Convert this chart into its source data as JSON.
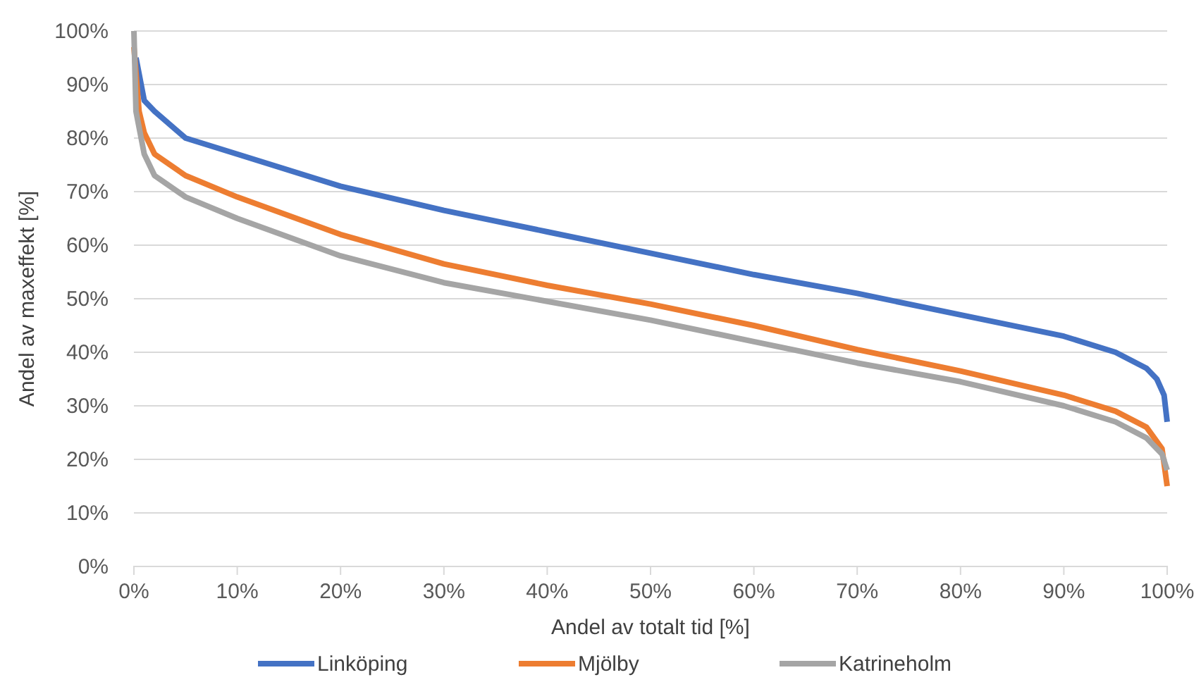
{
  "chart_data": {
    "type": "line",
    "xlabel": "Andel av totalt tid [%]",
    "ylabel": "Andel av maxeffekt [%]",
    "xlim": [
      0,
      100
    ],
    "ylim": [
      0,
      100
    ],
    "xticks": [
      {
        "value": 0,
        "label": "0%"
      },
      {
        "value": 10,
        "label": "10%"
      },
      {
        "value": 20,
        "label": "20%"
      },
      {
        "value": 30,
        "label": "30%"
      },
      {
        "value": 40,
        "label": "40%"
      },
      {
        "value": 50,
        "label": "50%"
      },
      {
        "value": 60,
        "label": "60%"
      },
      {
        "value": 70,
        "label": "70%"
      },
      {
        "value": 80,
        "label": "80%"
      },
      {
        "value": 90,
        "label": "90%"
      },
      {
        "value": 100,
        "label": "100%"
      }
    ],
    "yticks": [
      {
        "value": 0,
        "label": "0%"
      },
      {
        "value": 10,
        "label": "10%"
      },
      {
        "value": 20,
        "label": "20%"
      },
      {
        "value": 30,
        "label": "30%"
      },
      {
        "value": 40,
        "label": "40%"
      },
      {
        "value": 50,
        "label": "50%"
      },
      {
        "value": 60,
        "label": "60%"
      },
      {
        "value": 70,
        "label": "70%"
      },
      {
        "value": 80,
        "label": "80%"
      },
      {
        "value": 90,
        "label": "90%"
      },
      {
        "value": 100,
        "label": "100%"
      }
    ],
    "grid": "y",
    "legend": "bottom",
    "marker": "none",
    "line_style": "solid",
    "series": [
      {
        "name": "Linköping",
        "color": "#4472c4",
        "x": [
          0.2,
          1,
          2,
          5,
          10,
          20,
          30,
          40,
          50,
          60,
          70,
          80,
          90,
          95,
          98,
          99,
          99.7,
          100
        ],
        "values": [
          95,
          87,
          85,
          80,
          77,
          71,
          66.5,
          62.5,
          58.5,
          54.5,
          51,
          47,
          43,
          40,
          37,
          35,
          32,
          27
        ]
      },
      {
        "name": "Mjölby",
        "color": "#ed7d31",
        "x": [
          0,
          0.5,
          1,
          2,
          5,
          10,
          20,
          30,
          40,
          50,
          60,
          70,
          80,
          90,
          95,
          98,
          99.5,
          100
        ],
        "values": [
          97,
          85,
          81,
          77,
          73,
          69,
          62,
          56.5,
          52.5,
          49,
          45,
          40.5,
          36.5,
          32,
          29,
          26,
          22,
          15
        ]
      },
      {
        "name": "Katrineholm",
        "color": "#a5a5a5",
        "x": [
          0,
          0.2,
          1,
          2,
          5,
          10,
          20,
          30,
          40,
          50,
          60,
          70,
          80,
          90,
          95,
          98,
          99.5,
          100
        ],
        "values": [
          100,
          85,
          77,
          73,
          69,
          65,
          58,
          53,
          49.5,
          46,
          42,
          38,
          34.5,
          30,
          27,
          24,
          21,
          18
        ]
      }
    ]
  }
}
